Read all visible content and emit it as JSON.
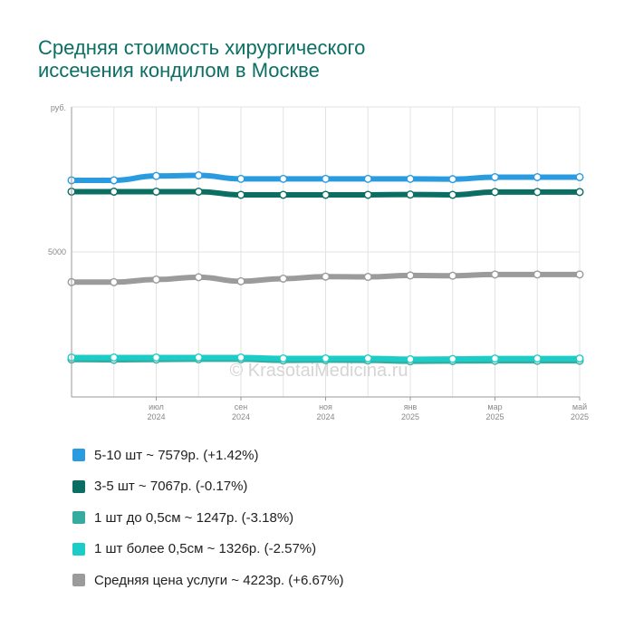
{
  "title_line1": "Средняя стоимость хирургического",
  "title_line2": "иссечения кондилом в Москве",
  "watermark": "© KrasotaiMedicina.ru",
  "chart_data": {
    "type": "line",
    "y_unit_label": "руб.",
    "y_tick_label": "5000",
    "ylim": [
      0,
      10000
    ],
    "grid": true,
    "legend_position": "bottom",
    "x": [
      "2024-05",
      "2024-06",
      "2024-07",
      "2024-08",
      "2024-09",
      "2024-10",
      "2024-11",
      "2024-12",
      "2025-01",
      "2025-02",
      "2025-03",
      "2025-04",
      "2025-05"
    ],
    "x_tick_labels": [
      {
        "x": "2024-07",
        "month": "июл",
        "year": "2024"
      },
      {
        "x": "2024-09",
        "month": "сен",
        "year": "2024"
      },
      {
        "x": "2024-11",
        "month": "ноя",
        "year": "2024"
      },
      {
        "x": "2025-01",
        "month": "янв",
        "year": "2025"
      },
      {
        "x": "2025-03",
        "month": "мар",
        "year": "2025"
      },
      {
        "x": "2025-05",
        "month": "май",
        "year": "2025"
      }
    ],
    "series": [
      {
        "name": "5-10 шт",
        "legend": "5-10 шт ~ 7579р. (+1.42%)",
        "color": "#2b9be0",
        "values": [
          7470,
          7470,
          7620,
          7640,
          7520,
          7520,
          7520,
          7520,
          7520,
          7510,
          7580,
          7580,
          7579
        ]
      },
      {
        "name": "3-5 шт",
        "legend": "3-5 шт ~ 7067р. (-0.17%)",
        "color": "#0a6e62",
        "values": [
          7080,
          7080,
          7080,
          7080,
          6970,
          6970,
          6970,
          6970,
          6980,
          6970,
          7067,
          7067,
          7067
        ]
      },
      {
        "name": "1 шт до 0,5см",
        "legend": "1 шт до 0,5см ~ 1247р. (-3.18%)",
        "color": "#36aca1",
        "values": [
          1290,
          1280,
          1290,
          1300,
          1300,
          1260,
          1270,
          1260,
          1230,
          1240,
          1247,
          1247,
          1247
        ]
      },
      {
        "name": "1 шт более 0,5см",
        "legend": "1 шт более 0,5см ~ 1326р. (-2.57%)",
        "color": "#1ccdc7",
        "values": [
          1360,
          1360,
          1360,
          1360,
          1360,
          1330,
          1330,
          1330,
          1300,
          1310,
          1326,
          1326,
          1326
        ]
      },
      {
        "name": "Средняя цена услуги",
        "legend": "Средняя цена услуги ~ 4223р. (+6.67%)",
        "color": "#9b9b9b",
        "values": [
          3960,
          3960,
          4050,
          4130,
          3990,
          4080,
          4150,
          4140,
          4190,
          4180,
          4223,
          4223,
          4223
        ]
      }
    ]
  }
}
